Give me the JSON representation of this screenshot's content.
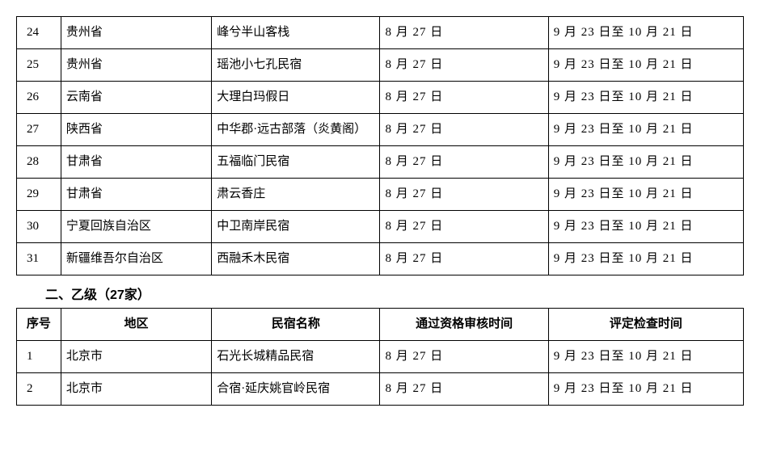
{
  "table1": {
    "rows": [
      {
        "num": "24",
        "region": "贵州省",
        "name": "峰兮半山客栈",
        "date1": "8 月 27 日",
        "date2": "9 月 23 日至 10 月 21 日"
      },
      {
        "num": "25",
        "region": "贵州省",
        "name": "瑶池小七孔民宿",
        "date1": "8 月 27 日",
        "date2": "9 月 23 日至 10 月 21 日"
      },
      {
        "num": "26",
        "region": "云南省",
        "name": "大理白玛假日",
        "date1": "8 月 27 日",
        "date2": "9 月 23 日至 10 月 21 日"
      },
      {
        "num": "27",
        "region": "陕西省",
        "name": "中华郡·远古部落（炎黄阁）",
        "date1": "8 月 27 日",
        "date2": "9 月 23 日至 10 月 21 日"
      },
      {
        "num": "28",
        "region": "甘肃省",
        "name": "五福临门民宿",
        "date1": "8 月 27 日",
        "date2": "9 月 23 日至 10 月 21 日"
      },
      {
        "num": "29",
        "region": "甘肃省",
        "name": "肃云香庄",
        "date1": "8 月 27 日",
        "date2": "9 月 23 日至 10 月 21 日"
      },
      {
        "num": "30",
        "region": "宁夏回族自治区",
        "name": "中卫南岸民宿",
        "date1": "8 月 27 日",
        "date2": "9 月 23 日至 10 月 21 日"
      },
      {
        "num": "31",
        "region": "新疆维吾尔自治区",
        "name": "西融禾木民宿",
        "date1": "8 月 27 日",
        "date2": "9 月 23 日至 10 月 21 日"
      }
    ]
  },
  "section2": {
    "heading": "二、乙级（27家）"
  },
  "table2": {
    "headers": {
      "num": "序号",
      "region": "地区",
      "name": "民宿名称",
      "date1": "通过资格审核时间",
      "date2": "评定检查时间"
    },
    "rows": [
      {
        "num": "1",
        "region": "北京市",
        "name": "石光长城精品民宿",
        "date1": "8 月 27 日",
        "date2": "9 月 23 日至 10 月 21 日"
      },
      {
        "num": "2",
        "region": "北京市",
        "name": "合宿·延庆姚官岭民宿",
        "date1": "8 月 27 日",
        "date2": "9 月 23 日至 10 月 21 日"
      }
    ]
  }
}
